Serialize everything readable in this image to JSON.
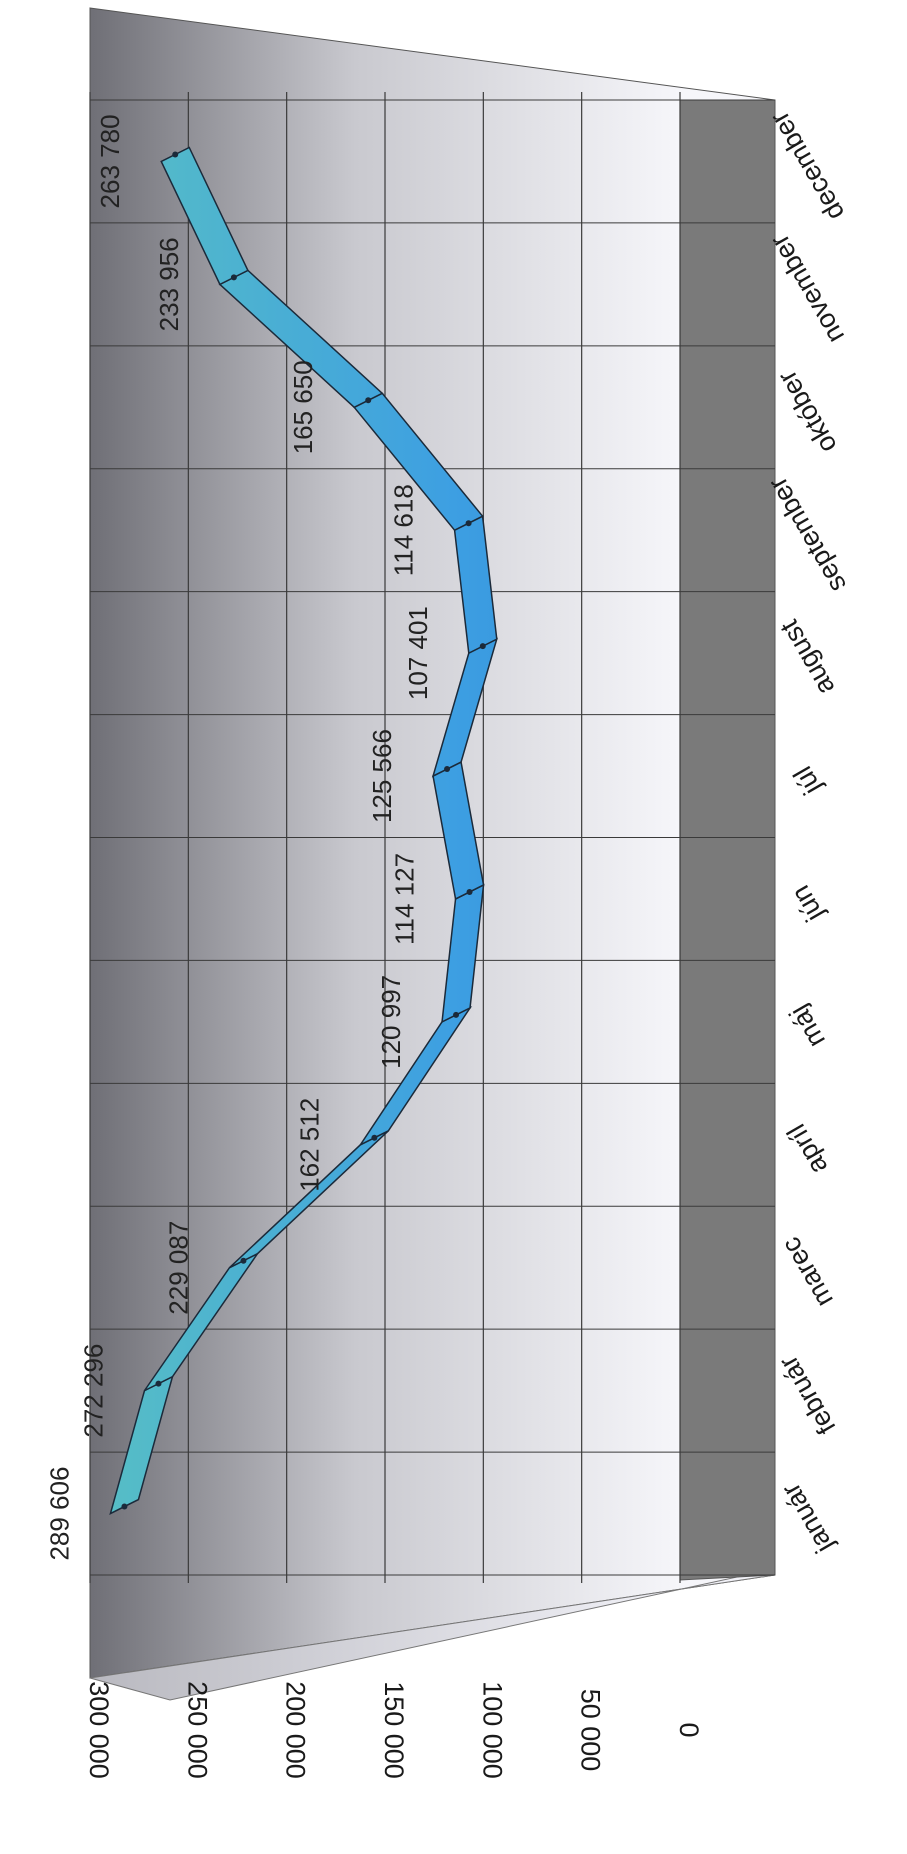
{
  "chart_data": {
    "type": "line",
    "style": "3d ribbon",
    "orientation": "rotated 90 degrees clockwise",
    "categories": [
      "január",
      "február",
      "marec",
      "apríl",
      "máj",
      "jún",
      "júl",
      "august",
      "september",
      "október",
      "november",
      "december"
    ],
    "series": [
      {
        "values": [
          289606,
          272296,
          229087,
          162512,
          120997,
          114127,
          125566,
          107401,
          114618,
          165650,
          233956,
          263780
        ],
        "labels": [
          "289 606",
          "272 296",
          "229 087",
          "162 512",
          "120 997",
          "114 127",
          "125 566",
          "107 401",
          "114 618",
          "165 650",
          "233 956",
          "263 780"
        ],
        "color": "#2e86de"
      }
    ],
    "y_ticks": [
      "0",
      "50 000",
      "100 000",
      "150 000",
      "200 000",
      "250 000",
      "300 000"
    ],
    "ylim": [
      0,
      300000
    ],
    "grid": true,
    "legend": "none"
  },
  "colors": {
    "wall_dark": "#6f6f76",
    "wall_light": "#f4f4f8",
    "floor": "#7a7a7a",
    "ribbon_light": "#5ec7bd",
    "ribbon_mid": "#3d9fe2",
    "ribbon_dark": "#1f6fd0",
    "grid": "#3a3a3a"
  }
}
